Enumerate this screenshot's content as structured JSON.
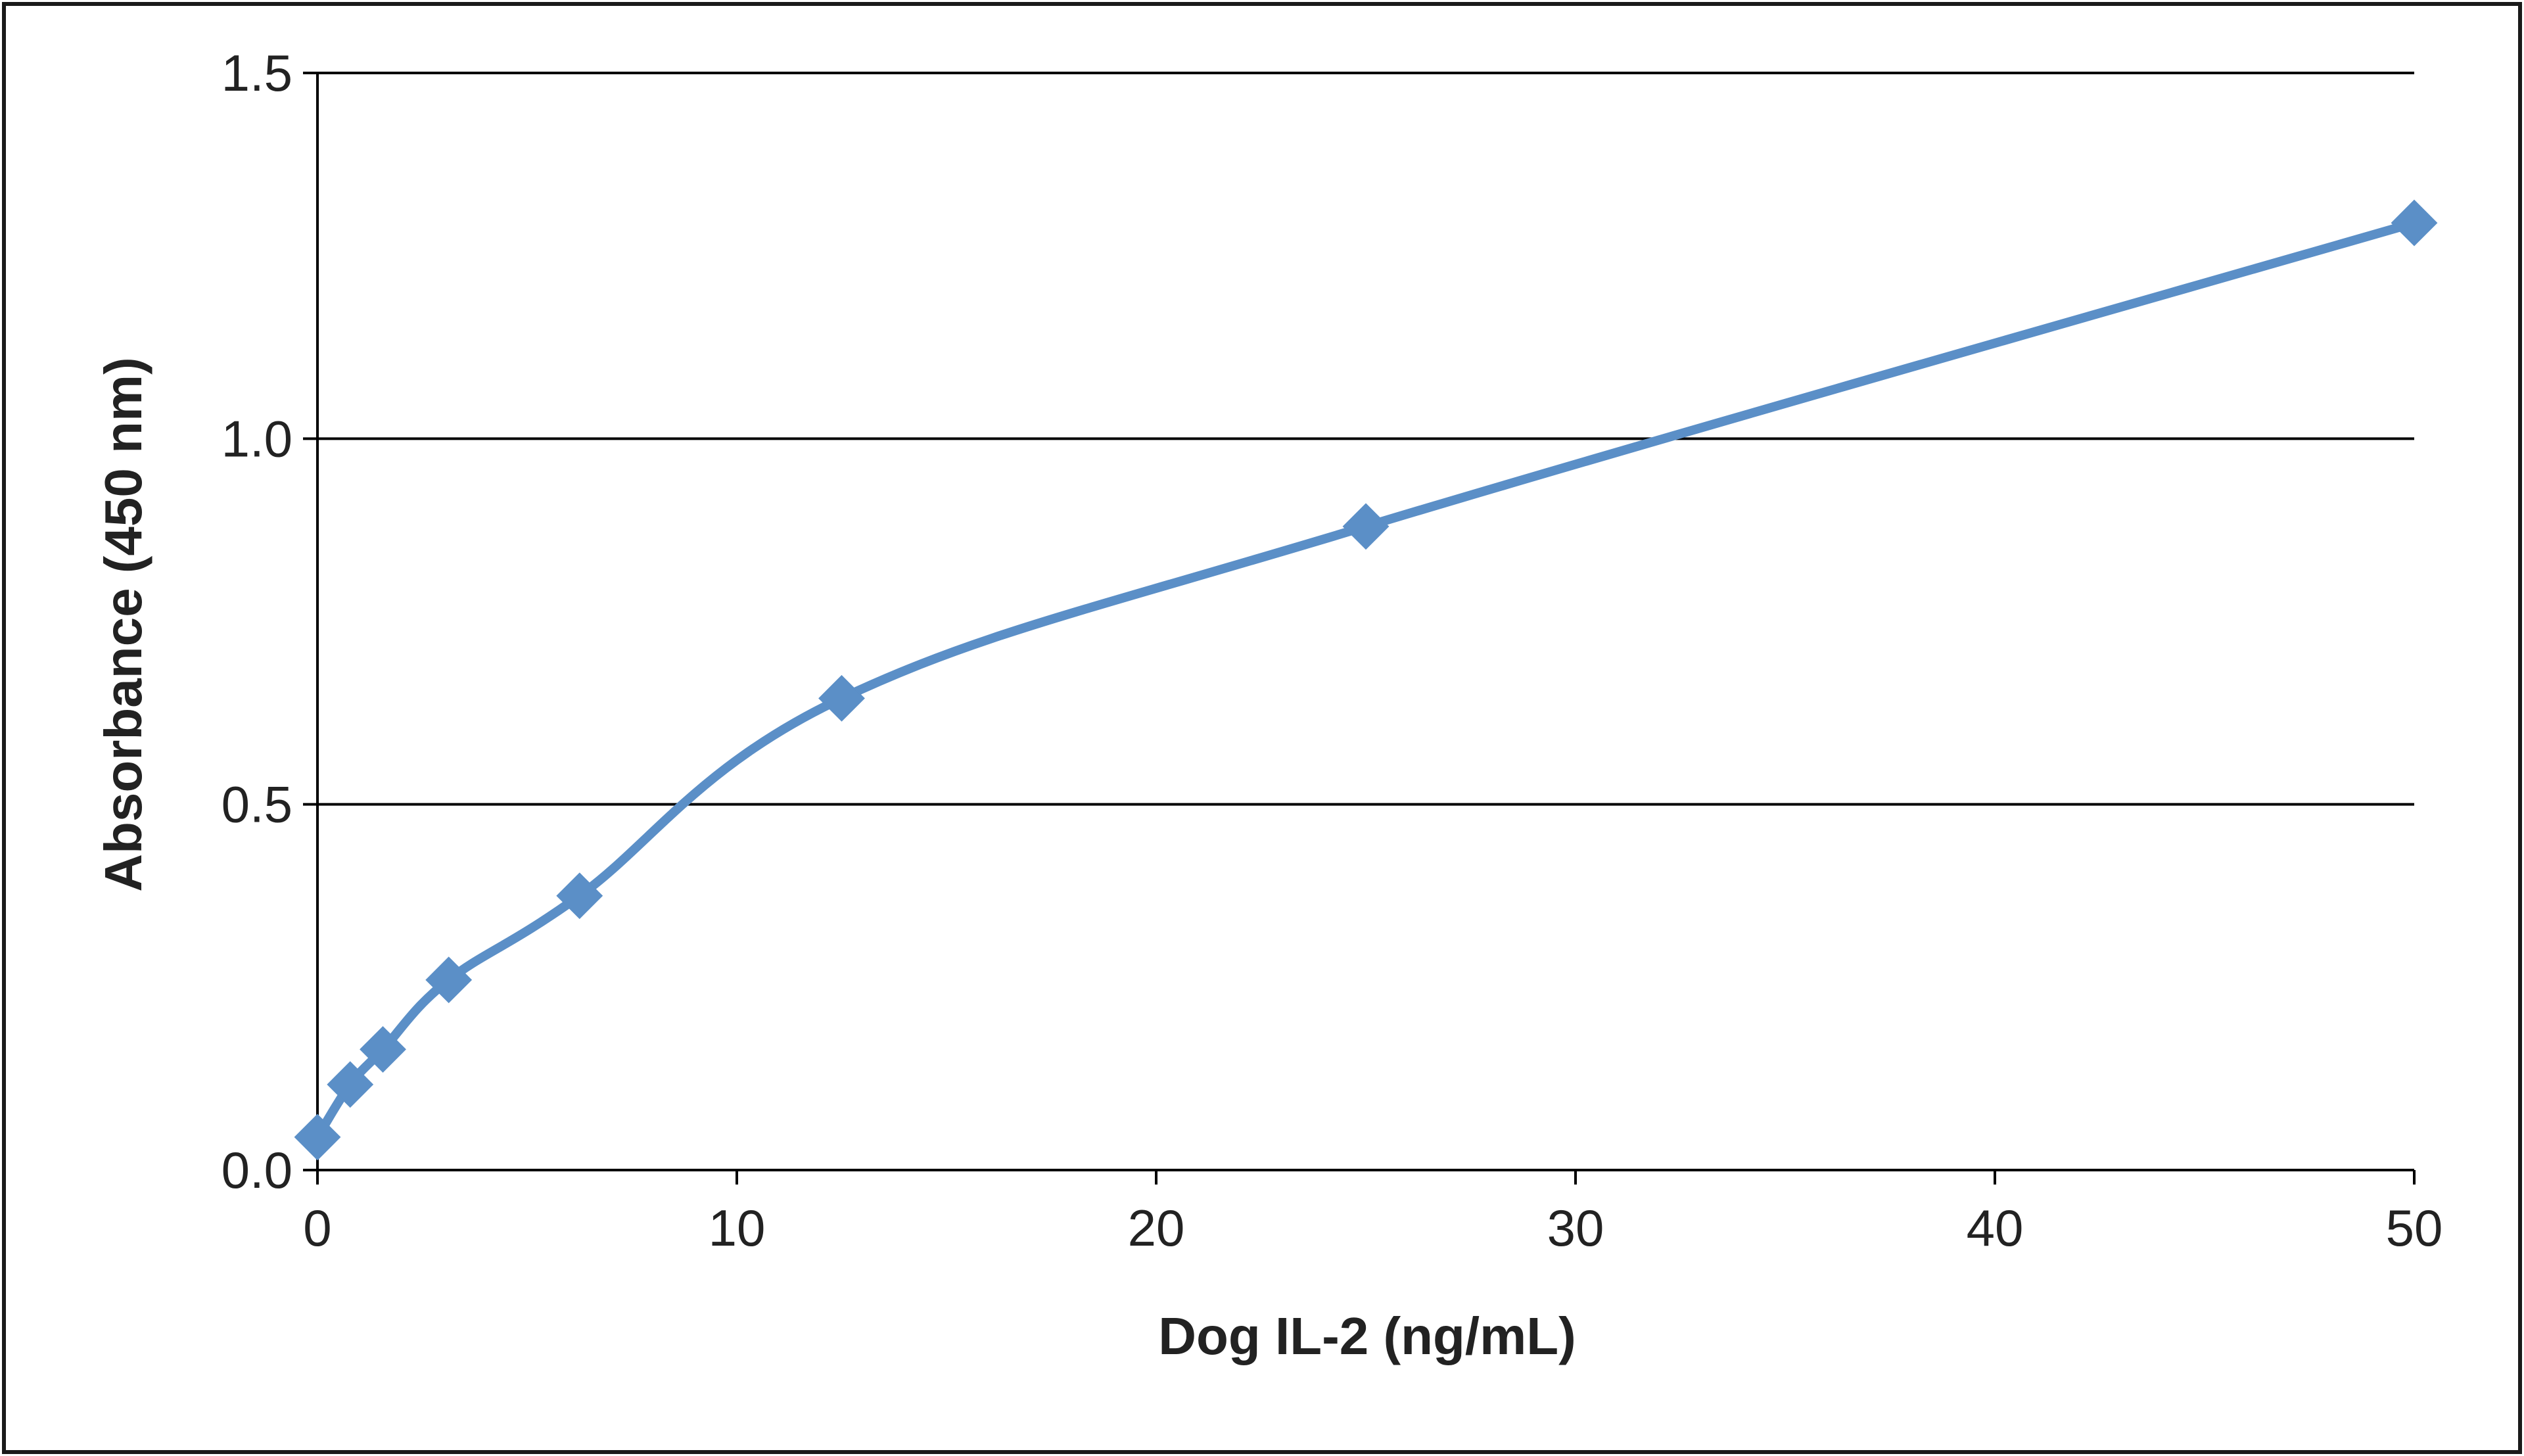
{
  "chart_data": {
    "type": "line",
    "title": "",
    "xlabel": "Dog IL-2 (ng/mL)",
    "ylabel": "Absorbance  (450 nm)",
    "xlim": [
      0,
      50
    ],
    "ylim": [
      0,
      1.5
    ],
    "x_ticks": [
      "0",
      "10",
      "20",
      "30",
      "40",
      "50"
    ],
    "y_ticks": [
      "0.0",
      "0.5",
      "1.0",
      "1.5"
    ],
    "grid": "horizontal",
    "legend": "none",
    "smooth": true,
    "marker": "diamond",
    "series_color": "#5b8fc7",
    "series": [
      {
        "x": [
          0,
          0.78,
          1.56,
          3.13,
          6.25,
          12.5,
          25,
          50
        ],
        "values": [
          0.045,
          0.117,
          0.165,
          0.26,
          0.375,
          0.645,
          0.88,
          1.295
        ]
      }
    ]
  }
}
